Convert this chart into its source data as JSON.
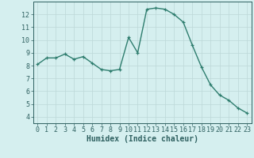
{
  "title": "",
  "xlabel": "Humidex (Indice chaleur)",
  "x": [
    0,
    1,
    2,
    3,
    4,
    5,
    6,
    7,
    8,
    9,
    10,
    11,
    12,
    13,
    14,
    15,
    16,
    17,
    18,
    19,
    20,
    21,
    22,
    23
  ],
  "y": [
    8.1,
    8.6,
    8.6,
    8.9,
    8.5,
    8.7,
    8.2,
    7.7,
    7.6,
    7.7,
    10.2,
    9.0,
    12.4,
    12.5,
    12.4,
    12.0,
    11.4,
    9.6,
    7.9,
    6.5,
    5.7,
    5.3,
    4.7,
    4.3
  ],
  "line_color": "#2e7d6e",
  "marker": "+",
  "marker_size": 3.5,
  "line_width": 1.0,
  "bg_color": "#d5efef",
  "grid_color": "#bcd8d8",
  "axes_bg": "#d5efef",
  "ylim": [
    3.5,
    13.0
  ],
  "xlim": [
    -0.5,
    23.5
  ],
  "yticks": [
    4,
    5,
    6,
    7,
    8,
    9,
    10,
    11,
    12
  ],
  "xticks": [
    0,
    1,
    2,
    3,
    4,
    5,
    6,
    7,
    8,
    9,
    10,
    11,
    12,
    13,
    14,
    15,
    16,
    17,
    18,
    19,
    20,
    21,
    22,
    23
  ],
  "tick_fontsize": 6.0,
  "label_fontsize": 7.0,
  "axis_color": "#2e6060"
}
